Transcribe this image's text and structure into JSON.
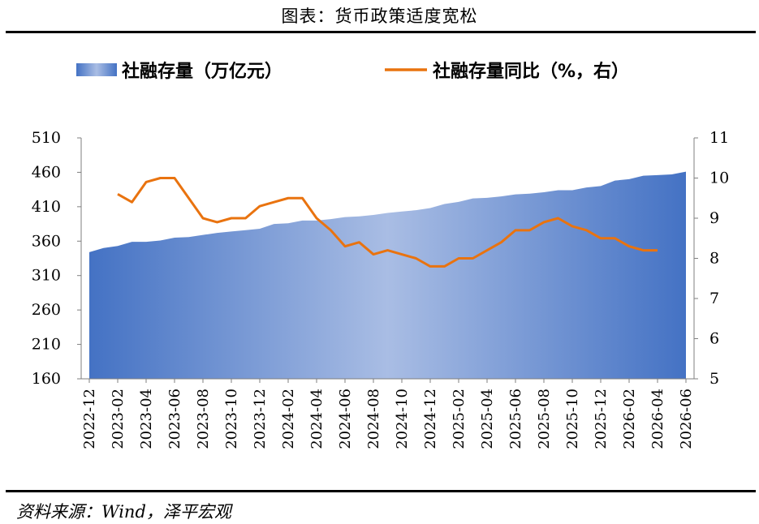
{
  "title": "图表：货币政策适度宽松",
  "source": "资料来源：Wind，泽平宏观",
  "chart_data": {
    "type": "area+line",
    "categories": [
      "2022-12",
      "2023-01",
      "2023-02",
      "2023-03",
      "2023-04",
      "2023-05",
      "2023-06",
      "2023-07",
      "2023-08",
      "2023-09",
      "2023-10",
      "2023-11",
      "2023-12",
      "2024-01",
      "2024-02",
      "2024-03",
      "2024-04",
      "2024-05",
      "2024-06",
      "2024-07",
      "2024-08",
      "2024-09",
      "2024-10",
      "2024-11",
      "2024-12",
      "2025-01",
      "2025-02",
      "2025-03",
      "2025-04",
      "2025-05",
      "2025-06",
      "2025-07",
      "2025-08",
      "2025-09",
      "2025-10",
      "2025-11",
      "2025-12",
      "2026-01",
      "2026-02",
      "2026-03",
      "2026-04",
      "2026-05",
      "2026-06"
    ],
    "x_tick_labels": [
      "2022-12",
      "2023-02",
      "2023-04",
      "2023-06",
      "2023-08",
      "2023-10",
      "2023-12",
      "2024-02",
      "2024-04",
      "2024-06",
      "2024-08",
      "2024-10",
      "2024-12",
      "2025-02",
      "2025-04",
      "2025-06",
      "2025-08",
      "2025-10",
      "2025-12",
      "2026-02",
      "2026-04",
      "2026-06"
    ],
    "series": [
      {
        "name": "社融存量（万亿元）",
        "type": "area",
        "axis": "left",
        "color_start": "#4472c4",
        "color_mid": "#a9bde4",
        "color_end": "#4472c4",
        "values": [
          344,
          350,
          353,
          359,
          359,
          361,
          365,
          366,
          369,
          372,
          374,
          376,
          378,
          385,
          386,
          390,
          390,
          392,
          395,
          396,
          398,
          401,
          403,
          405,
          408,
          414,
          417,
          422,
          423,
          425,
          428,
          429,
          431,
          434,
          434,
          438,
          440,
          448,
          450,
          455,
          456,
          457,
          461
        ]
      },
      {
        "name": "社融存量同比（%，右）",
        "type": "line",
        "axis": "right",
        "color": "#e9730f",
        "values": [
          null,
          null,
          9.6,
          9.4,
          9.9,
          10.0,
          10.0,
          9.5,
          9.0,
          8.9,
          9.0,
          9.0,
          9.3,
          9.4,
          9.5,
          9.5,
          9.0,
          8.7,
          8.3,
          8.4,
          8.1,
          8.2,
          8.1,
          8.0,
          7.8,
          7.8,
          8.0,
          8.0,
          8.2,
          8.4,
          8.7,
          8.7,
          8.9,
          9.0,
          8.8,
          8.7,
          8.5,
          8.5,
          8.3,
          8.2,
          8.2,
          null,
          null
        ]
      }
    ],
    "y_left": {
      "min": 160,
      "max": 510,
      "ticks": [
        "510",
        "460",
        "410",
        "360",
        "310",
        "260",
        "210",
        "160"
      ]
    },
    "y_right": {
      "min": 5,
      "max": 11,
      "ticks": [
        "11",
        "10",
        "9",
        "8",
        "7",
        "6",
        "5"
      ]
    },
    "legend_position": "top",
    "grid": false
  }
}
